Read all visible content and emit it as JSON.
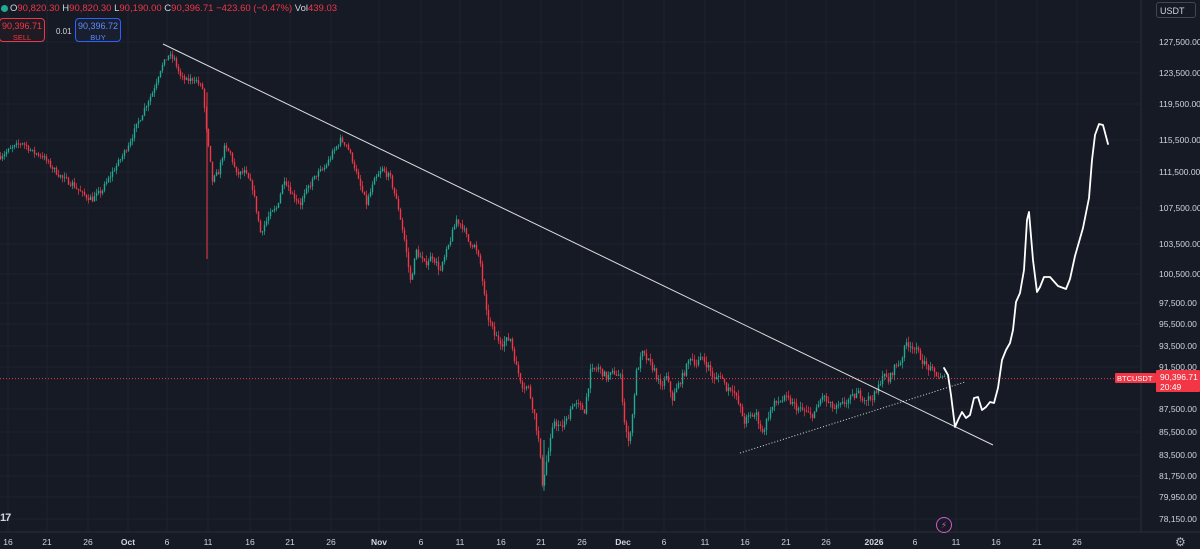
{
  "header": {
    "o_label": "O",
    "o_value": "90,820.30",
    "h_label": "H",
    "h_value": "90,820.30",
    "l_label": "L",
    "l_value": "90,190.00",
    "c_label": "C",
    "c_value": "90,396.71",
    "change": "−423.60 (−0.47%)",
    "vol_label": "Vol",
    "vol_value": "439.03"
  },
  "trade": {
    "sell_price": "90,396.71",
    "sell_label": "SELL",
    "spread": "0.01",
    "buy_price": "90,396.72",
    "buy_label": "BUY"
  },
  "currency": "USDT",
  "symbol_tag": "BTCUSDT",
  "last_price": "90,396.71",
  "countdown": "20:49",
  "logo_text": "17",
  "colors": {
    "bg": "#161a25",
    "up": "#22ab94",
    "down": "#f23645",
    "grid": "#1f2330",
    "text": "#d1d4dc",
    "drawing": "#ffffff",
    "last_line": "#f23645"
  },
  "icons": [
    "bolt-icon",
    "gear-icon"
  ],
  "chart_data": {
    "type": "candlestick",
    "x_ticks": [
      {
        "label": "16",
        "pos": 8
      },
      {
        "label": "21",
        "pos": 47
      },
      {
        "label": "26",
        "pos": 88
      },
      {
        "label": "Oct",
        "pos": 128
      },
      {
        "label": "6",
        "pos": 167
      },
      {
        "label": "11",
        "pos": 208
      },
      {
        "label": "16",
        "pos": 250
      },
      {
        "label": "21",
        "pos": 290
      },
      {
        "label": "26",
        "pos": 331
      },
      {
        "label": "Nov",
        "pos": 379
      },
      {
        "label": "6",
        "pos": 421
      },
      {
        "label": "11",
        "pos": 460
      },
      {
        "label": "16",
        "pos": 501
      },
      {
        "label": "21",
        "pos": 541
      },
      {
        "label": "26",
        "pos": 582
      },
      {
        "label": "Dec",
        "pos": 623
      },
      {
        "label": "6",
        "pos": 664
      },
      {
        "label": "11",
        "pos": 705
      },
      {
        "label": "16",
        "pos": 745
      },
      {
        "label": "21",
        "pos": 786
      },
      {
        "label": "26",
        "pos": 826
      },
      {
        "label": "2026",
        "pos": 874
      },
      {
        "label": "6",
        "pos": 915
      },
      {
        "label": "11",
        "pos": 956
      },
      {
        "label": "16",
        "pos": 996
      },
      {
        "label": "21",
        "pos": 1037
      },
      {
        "label": "26",
        "pos": 1077
      }
    ],
    "y_ticks": [
      127500,
      123500,
      119500,
      115500,
      111500,
      107500,
      103500,
      100500,
      97500,
      95500,
      93500,
      91500,
      87500,
      85500,
      83500,
      81750,
      79950,
      78150
    ],
    "y_tick_labels": [
      "127,500.00",
      "123,500.00",
      "119,500.00",
      "115,500.00",
      "111,500.00",
      "107,500.00",
      "103,500.00",
      "100,500.00",
      "97,500.00",
      "95,500.00",
      "93,500.00",
      "91,500.00",
      "87,500.00",
      "85,500.00",
      "83,500.00",
      "81,750.00",
      "79,950.00",
      "78,150.00"
    ],
    "last_price_value": 90396.71,
    "price_path": [
      [
        0,
        113500
      ],
      [
        12,
        114500
      ],
      [
        22,
        115200
      ],
      [
        32,
        114000
      ],
      [
        42,
        113500
      ],
      [
        52,
        112000
      ],
      [
        62,
        110800
      ],
      [
        72,
        110200
      ],
      [
        82,
        109000
      ],
      [
        92,
        108500
      ],
      [
        102,
        109500
      ],
      [
        112,
        111500
      ],
      [
        122,
        113500
      ],
      [
        132,
        116000
      ],
      [
        142,
        118500
      ],
      [
        152,
        121000
      ],
      [
        160,
        124000
      ],
      [
        168,
        125800
      ],
      [
        174,
        125200
      ],
      [
        180,
        123000
      ],
      [
        186,
        122500
      ],
      [
        194,
        122800
      ],
      [
        202,
        121500
      ],
      [
        206,
        116500
      ],
      [
        212,
        110500
      ],
      [
        218,
        111500
      ],
      [
        224,
        114500
      ],
      [
        230,
        113800
      ],
      [
        236,
        111200
      ],
      [
        244,
        111500
      ],
      [
        252,
        109800
      ],
      [
        260,
        104800
      ],
      [
        268,
        106500
      ],
      [
        276,
        107500
      ],
      [
        284,
        110800
      ],
      [
        292,
        109000
      ],
      [
        300,
        108000
      ],
      [
        308,
        109800
      ],
      [
        316,
        111200
      ],
      [
        324,
        112000
      ],
      [
        332,
        113800
      ],
      [
        340,
        115500
      ],
      [
        346,
        115000
      ],
      [
        352,
        113000
      ],
      [
        358,
        110500
      ],
      [
        366,
        108000
      ],
      [
        374,
        110500
      ],
      [
        382,
        111800
      ],
      [
        390,
        110800
      ],
      [
        398,
        107500
      ],
      [
        404,
        104000
      ],
      [
        410,
        99800
      ],
      [
        416,
        102800
      ],
      [
        424,
        101500
      ],
      [
        432,
        102300
      ],
      [
        440,
        100800
      ],
      [
        448,
        103300
      ],
      [
        456,
        106200
      ],
      [
        462,
        105500
      ],
      [
        468,
        103800
      ],
      [
        474,
        103300
      ],
      [
        480,
        101500
      ],
      [
        486,
        96500
      ],
      [
        494,
        94500
      ],
      [
        502,
        93800
      ],
      [
        510,
        94200
      ],
      [
        516,
        91500
      ],
      [
        522,
        89800
      ],
      [
        528,
        89500
      ],
      [
        534,
        87000
      ],
      [
        538,
        84800
      ],
      [
        542,
        81200
      ],
      [
        548,
        83800
      ],
      [
        554,
        86500
      ],
      [
        560,
        85800
      ],
      [
        566,
        86500
      ],
      [
        572,
        88000
      ],
      [
        578,
        87800
      ],
      [
        584,
        87400
      ],
      [
        590,
        91000
      ],
      [
        598,
        91400
      ],
      [
        606,
        90500
      ],
      [
        614,
        91000
      ],
      [
        620,
        90500
      ],
      [
        624,
        86500
      ],
      [
        628,
        84500
      ],
      [
        632,
        87000
      ],
      [
        636,
        91000
      ],
      [
        642,
        92800
      ],
      [
        648,
        92000
      ],
      [
        654,
        91200
      ],
      [
        660,
        89500
      ],
      [
        666,
        90500
      ],
      [
        672,
        88500
      ],
      [
        678,
        89800
      ],
      [
        684,
        91000
      ],
      [
        690,
        92500
      ],
      [
        696,
        91800
      ],
      [
        702,
        92400
      ],
      [
        708,
        91500
      ],
      [
        714,
        90200
      ],
      [
        720,
        90800
      ],
      [
        726,
        89500
      ],
      [
        732,
        89500
      ],
      [
        738,
        88000
      ],
      [
        744,
        86400
      ],
      [
        750,
        86900
      ],
      [
        756,
        87000
      ],
      [
        762,
        85400
      ],
      [
        768,
        87000
      ],
      [
        774,
        88000
      ],
      [
        780,
        88300
      ],
      [
        786,
        88500
      ],
      [
        792,
        88000
      ],
      [
        798,
        87500
      ],
      [
        804,
        87300
      ],
      [
        810,
        86900
      ],
      [
        816,
        87400
      ],
      [
        822,
        88800
      ],
      [
        828,
        88000
      ],
      [
        834,
        87500
      ],
      [
        840,
        87800
      ],
      [
        846,
        88200
      ],
      [
        852,
        88600
      ],
      [
        858,
        89000
      ],
      [
        864,
        88500
      ],
      [
        870,
        88500
      ],
      [
        876,
        89000
      ],
      [
        882,
        90800
      ],
      [
        888,
        90200
      ],
      [
        894,
        91500
      ],
      [
        900,
        92000
      ],
      [
        906,
        93800
      ],
      [
        912,
        93500
      ],
      [
        918,
        92800
      ],
      [
        924,
        91800
      ],
      [
        930,
        91200
      ],
      [
        936,
        90800
      ],
      [
        940,
        90400
      ],
      [
        944,
        90396
      ]
    ],
    "drawings": {
      "trendline": [
        [
          163,
          44
        ],
        [
          993,
          445
        ]
      ],
      "support_dotted": [
        [
          740,
          453
        ],
        [
          965,
          382
        ]
      ],
      "projection": [
        [
          944,
          368
        ],
        [
          948,
          375
        ],
        [
          951,
          395
        ],
        [
          955,
          427
        ],
        [
          958,
          420
        ],
        [
          962,
          412
        ],
        [
          966,
          418
        ],
        [
          970,
          415
        ],
        [
          974,
          398
        ],
        [
          978,
          397
        ],
        [
          982,
          410
        ],
        [
          986,
          407
        ],
        [
          990,
          402
        ],
        [
          994,
          403
        ],
        [
          998,
          388
        ],
        [
          1002,
          360
        ],
        [
          1006,
          350
        ],
        [
          1010,
          343
        ],
        [
          1013,
          330
        ],
        [
          1016,
          302
        ],
        [
          1020,
          293
        ],
        [
          1024,
          270
        ],
        [
          1027,
          220
        ],
        [
          1029,
          212
        ],
        [
          1033,
          260
        ],
        [
          1037,
          292
        ],
        [
          1040,
          287
        ],
        [
          1044,
          277
        ],
        [
          1050,
          277
        ],
        [
          1058,
          286
        ],
        [
          1066,
          289
        ],
        [
          1070,
          279
        ],
        [
          1075,
          256
        ],
        [
          1083,
          228
        ],
        [
          1089,
          198
        ],
        [
          1092,
          160
        ],
        [
          1095,
          135
        ],
        [
          1099,
          124
        ],
        [
          1103,
          125
        ],
        [
          1108,
          144
        ]
      ]
    }
  }
}
